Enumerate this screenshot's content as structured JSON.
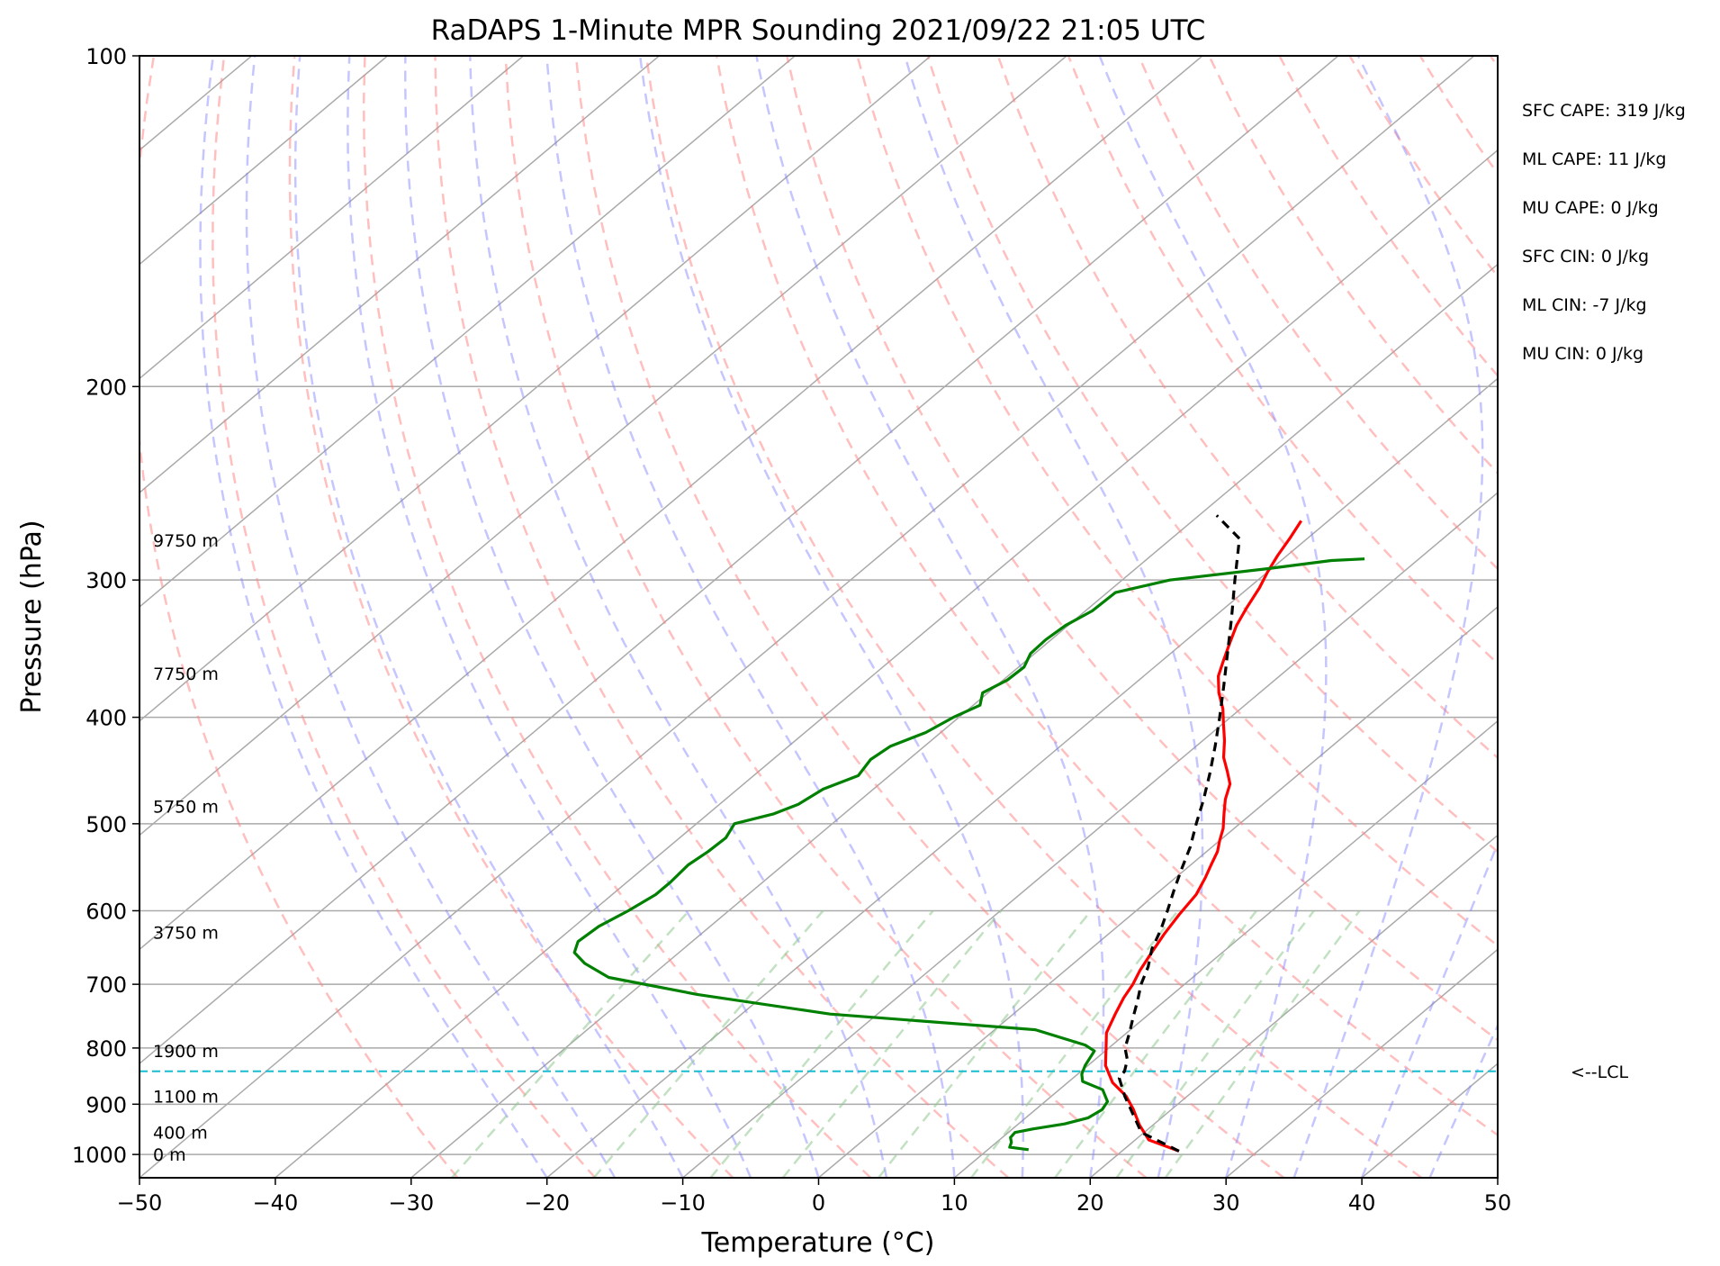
{
  "chart_data": {
    "type": "line",
    "title": "RaDAPS 1-Minute MPR Sounding 2021/09/22 21:05 UTC",
    "xlabel": "Temperature (°C)",
    "ylabel": "Pressure (hPa)",
    "xlim": [
      -50,
      50
    ],
    "ylim": [
      1050,
      100
    ],
    "y_scale": "log",
    "skew_t": true,
    "grid": true,
    "xticks": [
      -50,
      -40,
      -30,
      -20,
      -10,
      0,
      10,
      20,
      30,
      40,
      50
    ],
    "xtick_labels": [
      "−50",
      "−40",
      "−30",
      "−20",
      "−10",
      "0",
      "10",
      "20",
      "30",
      "40",
      "50"
    ],
    "yticks": [
      100,
      200,
      300,
      400,
      500,
      600,
      700,
      800,
      900,
      1000
    ],
    "ytick_labels": [
      "100",
      "200",
      "300",
      "400",
      "500",
      "600",
      "700",
      "800",
      "900",
      "1000"
    ],
    "series": [
      {
        "role": "temperature",
        "color": "#ff0000",
        "style": "solid",
        "points": [
          [
            24.2,
            993
          ],
          [
            21,
            970
          ],
          [
            19,
            940
          ],
          [
            17.2,
            910
          ],
          [
            15.5,
            885
          ],
          [
            13.3,
            860
          ],
          [
            11.3,
            830
          ],
          [
            9.8,
            800
          ],
          [
            8.5,
            775
          ],
          [
            7.5,
            745
          ],
          [
            6.7,
            720
          ],
          [
            6.2,
            700
          ],
          [
            5.5,
            680
          ],
          [
            4.8,
            655
          ],
          [
            4.1,
            630
          ],
          [
            3.5,
            605
          ],
          [
            3.0,
            580
          ],
          [
            2.2,
            560
          ],
          [
            1.5,
            545
          ],
          [
            0.8,
            530
          ],
          [
            0.0,
            518
          ],
          [
            -0.8,
            505
          ],
          [
            -2.0,
            490
          ],
          [
            -3.2,
            475
          ],
          [
            -4.2,
            460
          ],
          [
            -5.5,
            448
          ],
          [
            -7.0,
            435
          ],
          [
            -8.4,
            420
          ],
          [
            -10,
            405
          ],
          [
            -11.3,
            393
          ],
          [
            -13,
            380
          ],
          [
            -14.5,
            367
          ],
          [
            -15.5,
            355
          ],
          [
            -16.5,
            343
          ],
          [
            -17.6,
            330
          ],
          [
            -18.4,
            318
          ],
          [
            -19.2,
            305
          ],
          [
            -20,
            295
          ],
          [
            -20.7,
            285
          ],
          [
            -21.3,
            275
          ],
          [
            -22,
            265
          ]
        ]
      },
      {
        "role": "dewpoint",
        "color": "#008000",
        "style": "solid",
        "points": [
          [
            13,
            990
          ],
          [
            11.4,
            985
          ],
          [
            11.1,
            975
          ],
          [
            10.6,
            965
          ],
          [
            10.5,
            955
          ],
          [
            11.5,
            948
          ],
          [
            13.4,
            938
          ],
          [
            14.6,
            926
          ],
          [
            14.9,
            910
          ],
          [
            14.6,
            895
          ],
          [
            13.2,
            873
          ],
          [
            11.0,
            858
          ],
          [
            10.3,
            845
          ],
          [
            9.8,
            830
          ],
          [
            9.2,
            805
          ],
          [
            8.0,
            795
          ],
          [
            3.0,
            770
          ],
          [
            -13.5,
            745
          ],
          [
            -25.0,
            715
          ],
          [
            -33.0,
            690
          ],
          [
            -36.0,
            670
          ],
          [
            -37.7,
            655
          ],
          [
            -38.4,
            640
          ],
          [
            -38.2,
            620
          ],
          [
            -37.4,
            600
          ],
          [
            -36.8,
            580
          ],
          [
            -36.8,
            565
          ],
          [
            -37.0,
            545
          ],
          [
            -36.7,
            530
          ],
          [
            -36.6,
            515
          ],
          [
            -37.2,
            500
          ],
          [
            -35.2,
            490
          ],
          [
            -34.2,
            480
          ],
          [
            -33.7,
            465
          ],
          [
            -32.3,
            452
          ],
          [
            -32.8,
            437
          ],
          [
            -32.5,
            425
          ],
          [
            -31.1,
            413
          ],
          [
            -30.4,
            400
          ],
          [
            -29.5,
            390
          ],
          [
            -30.4,
            380
          ],
          [
            -29.7,
            370
          ],
          [
            -29.6,
            360
          ],
          [
            -30.3,
            350
          ],
          [
            -30.4,
            340
          ],
          [
            -30.2,
            330
          ],
          [
            -29.5,
            320
          ],
          [
            -29.4,
            308
          ],
          [
            -26.5,
            300
          ],
          [
            -20.3,
            293
          ],
          [
            -16.3,
            288
          ],
          [
            -14,
            287
          ]
        ]
      },
      {
        "role": "parcel_profile",
        "color": "#000000",
        "style": "dashed",
        "points": [
          [
            24.2,
            993
          ],
          [
            19.8,
            955
          ],
          [
            15.4,
            885
          ],
          [
            13.4,
            852
          ],
          [
            13.2,
            840
          ],
          [
            12.4,
            820
          ],
          [
            11.2,
            800
          ],
          [
            10.2,
            775
          ],
          [
            9.1,
            750
          ],
          [
            8.0,
            725
          ],
          [
            6.8,
            700
          ],
          [
            5.8,
            675
          ],
          [
            4.5,
            650
          ],
          [
            3.5,
            625
          ],
          [
            2.3,
            600
          ],
          [
            1.0,
            575
          ],
          [
            -0.3,
            550
          ],
          [
            -1.6,
            525
          ],
          [
            -3.2,
            500
          ],
          [
            -4.8,
            475
          ],
          [
            -6.6,
            450
          ],
          [
            -8.6,
            425
          ],
          [
            -10.8,
            400
          ],
          [
            -13.2,
            375
          ],
          [
            -15.8,
            350
          ],
          [
            -18.6,
            325
          ],
          [
            -21.7,
            300
          ],
          [
            -25,
            275
          ],
          [
            -28.7,
            262
          ]
        ]
      }
    ],
    "lcl": {
      "label": "<--LCL",
      "pressure": 840,
      "color": "#17becf"
    },
    "height_labels": [
      {
        "label": "0 m",
        "pressure": 1000
      },
      {
        "label": "400 m",
        "pressure": 955
      },
      {
        "label": "1100 m",
        "pressure": 885
      },
      {
        "label": "1900 m",
        "pressure": 805
      },
      {
        "label": "3750 m",
        "pressure": 628
      },
      {
        "label": "5750 m",
        "pressure": 482
      },
      {
        "label": "7750 m",
        "pressure": 365
      },
      {
        "label": "9750 m",
        "pressure": 276
      }
    ],
    "annotations": [
      "SFC CAPE: 319 J/kg",
      "ML CAPE: 11 J/kg",
      "MU CAPE: 0 J/kg",
      "SFC CIN: 0 J/kg",
      "ML CIN: -7 J/kg",
      "MU CIN: 0 J/kg"
    ],
    "reference_lines": {
      "isotherm_color": "#aaaaaa",
      "dry_adiabat_color": "#ff8080",
      "moist_adiabat_color": "#8080ff",
      "mixing_ratio_color": "#8fc98f"
    }
  }
}
